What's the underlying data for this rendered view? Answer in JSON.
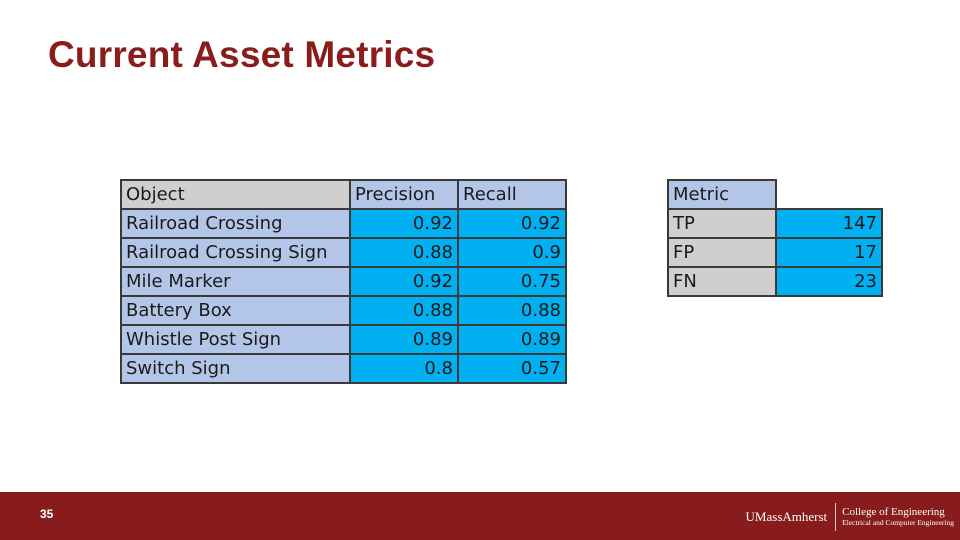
{
  "slide": {
    "title": "Current Asset Metrics",
    "page_number": "35"
  },
  "object_table": {
    "headers": [
      "Object",
      "Precision",
      "Recall"
    ],
    "rows": [
      {
        "object": "Railroad Crossing",
        "precision": "0.92",
        "recall": "0.92"
      },
      {
        "object": "Railroad Crossing Sign",
        "precision": "0.88",
        "recall": "0.9"
      },
      {
        "object": "Mile Marker",
        "precision": "0.92",
        "recall": "0.75"
      },
      {
        "object": "Battery Box",
        "precision": "0.88",
        "recall": "0.88"
      },
      {
        "object": "Whistle Post Sign",
        "precision": "0.89",
        "recall": "0.89"
      },
      {
        "object": "Switch Sign",
        "precision": "0.8",
        "recall": "0.57"
      }
    ]
  },
  "count_table": {
    "header": "Metric",
    "rows": [
      {
        "metric": "TP",
        "value": "147"
      },
      {
        "metric": "FP",
        "value": "17"
      },
      {
        "metric": "FN",
        "value": "23"
      }
    ]
  },
  "footer": {
    "university": "UMassAmherst",
    "college": "College of Engineering",
    "department": "Electrical and Computer Engineering"
  },
  "colors": {
    "title": "#8b1c1c",
    "footer_bar": "#881c1c",
    "header_gray": "#d0cece",
    "label_blue": "#b4c6e7",
    "value_cyan": "#00b0f0"
  }
}
